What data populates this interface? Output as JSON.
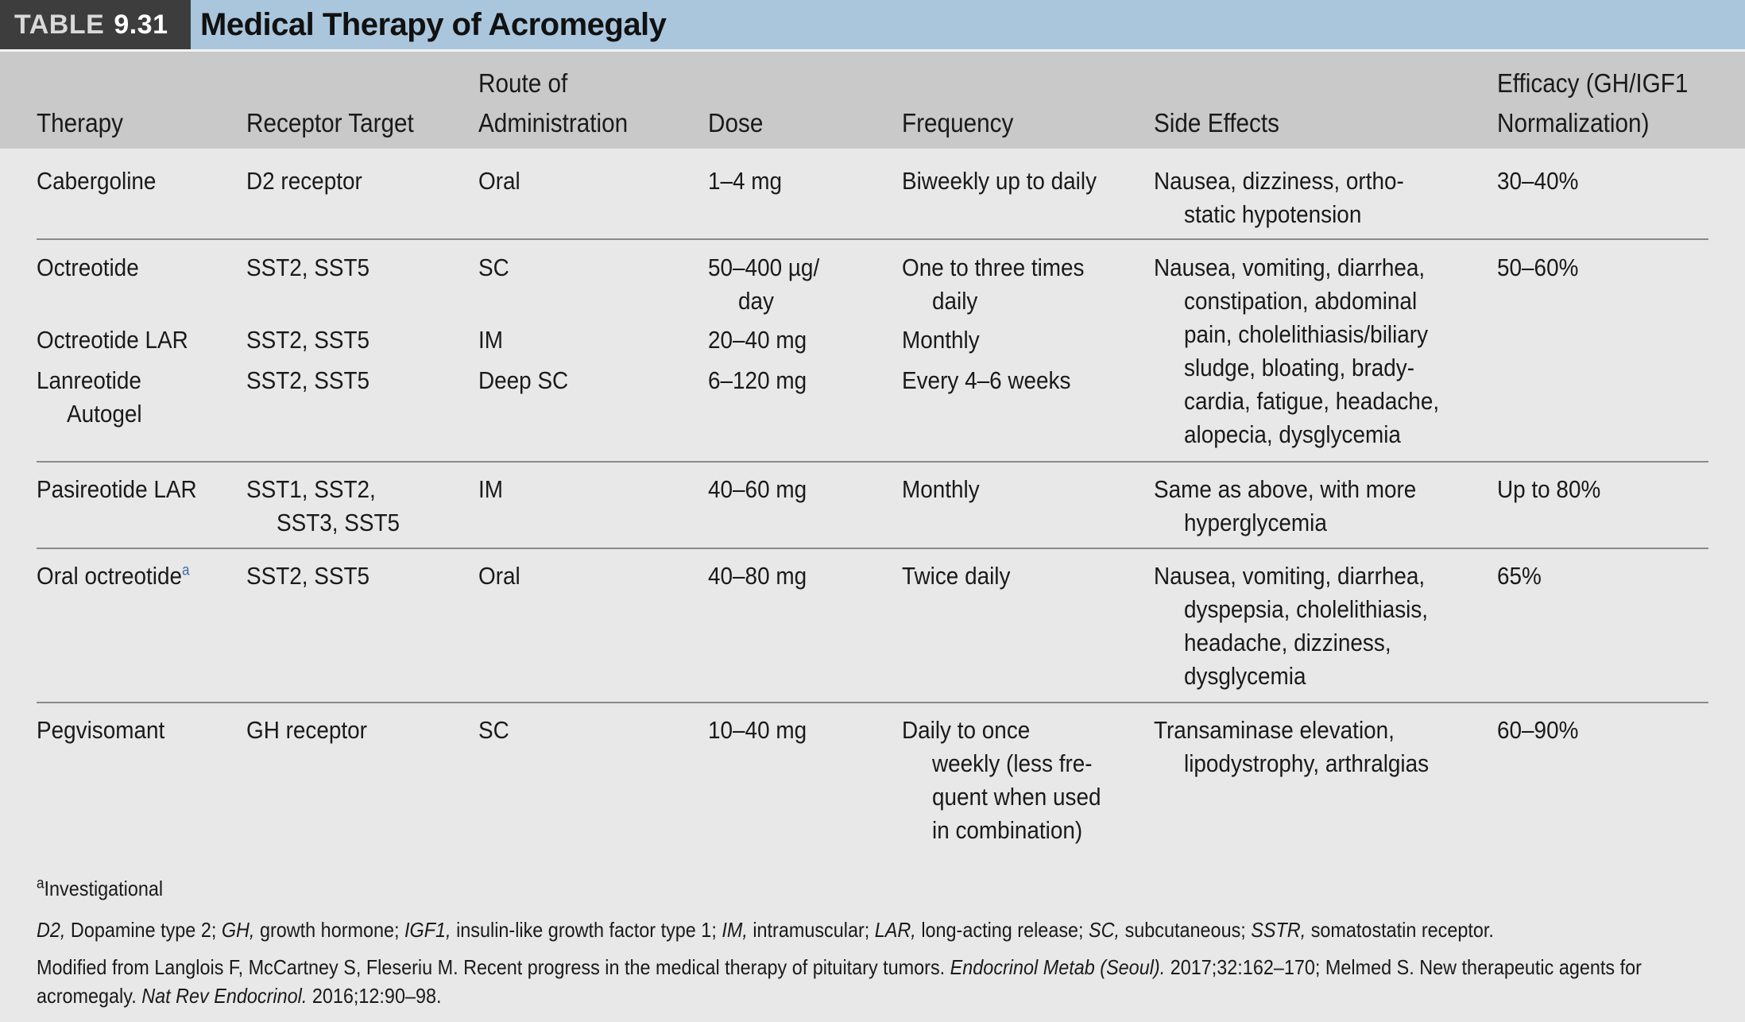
{
  "table_label": {
    "word": "TABLE",
    "number": "9.31"
  },
  "title": "Medical Therapy of Acromegaly",
  "headers": {
    "therapy": [
      "Therapy"
    ],
    "receptor": [
      "Receptor Target"
    ],
    "route": [
      "Route of",
      "Administration"
    ],
    "dose": [
      "Dose"
    ],
    "frequency": [
      "Frequency"
    ],
    "side_effects": [
      "Side Effects"
    ],
    "efficacy": [
      "Efficacy (GH/IGF1",
      "Normalization)"
    ]
  },
  "rows": {
    "cabergoline": {
      "therapy": [
        "Cabergoline"
      ],
      "receptor": [
        "D2 receptor"
      ],
      "route": [
        "Oral"
      ],
      "dose": [
        "1–4 mg"
      ],
      "frequency": [
        "Biweekly up to daily"
      ],
      "side_effects": [
        "Nausea, dizziness, ortho-",
        "static hypotension"
      ],
      "efficacy": [
        "30–40%"
      ]
    },
    "octreotide": {
      "therapy": [
        "Octreotide"
      ],
      "receptor": [
        "SST2, SST5"
      ],
      "route": [
        "SC"
      ],
      "dose": [
        "50–400 µg/",
        "day"
      ],
      "frequency": [
        "One to three times",
        "daily"
      ],
      "side_effects": [
        "Nausea, vomiting, diarrhea,",
        "constipation, abdominal",
        "pain, cholelithiasis/biliary",
        "sludge, bloating, brady-",
        "cardia, fatigue, headache,",
        "alopecia, dysglycemia"
      ],
      "efficacy": [
        "50–60%"
      ]
    },
    "octreotide_lar": {
      "therapy": [
        "Octreotide LAR"
      ],
      "receptor": [
        "SST2, SST5"
      ],
      "route": [
        "IM"
      ],
      "dose": [
        "20–40 mg"
      ],
      "frequency": [
        "Monthly"
      ]
    },
    "lanreotide": {
      "therapy": [
        "Lanreotide",
        "Autogel"
      ],
      "receptor": [
        "SST2, SST5"
      ],
      "route": [
        "Deep SC"
      ],
      "dose": [
        "6–120 mg"
      ],
      "frequency": [
        "Every 4–6 weeks"
      ]
    },
    "pasireotide": {
      "therapy": [
        "Pasireotide LAR"
      ],
      "receptor": [
        "SST1, SST2,",
        "SST3, SST5"
      ],
      "route": [
        "IM"
      ],
      "dose": [
        "40–60 mg"
      ],
      "frequency": [
        "Monthly"
      ],
      "side_effects": [
        "Same as above, with more",
        "hyperglycemia"
      ],
      "efficacy": [
        "Up to 80%"
      ]
    },
    "oral_octreotide": {
      "therapy": "Oral octreotide",
      "therapy_sup": "a",
      "receptor": [
        "SST2, SST5"
      ],
      "route": [
        "Oral"
      ],
      "dose": [
        "40–80 mg"
      ],
      "frequency": [
        "Twice daily"
      ],
      "side_effects": [
        "Nausea, vomiting, diarrhea,",
        "dyspepsia, cholelithiasis,",
        "headache, dizziness,",
        "dysglycemia"
      ],
      "efficacy": [
        "65%"
      ]
    },
    "pegvisomant": {
      "therapy": [
        "Pegvisomant"
      ],
      "receptor": [
        "GH receptor"
      ],
      "route": [
        "SC"
      ],
      "dose": [
        "10–40 mg"
      ],
      "frequency": [
        "Daily to once",
        "weekly (less fre-",
        "quent when used",
        "in combination)"
      ],
      "side_effects": [
        "Transaminase elevation,",
        "lipodystrophy, arthralgias"
      ],
      "efficacy": [
        "60–90%"
      ]
    }
  },
  "footnote": {
    "mark": "a",
    "text": "Investigational"
  },
  "abbreviations": [
    {
      "abbr": "D2,",
      "text": " Dopamine type 2; "
    },
    {
      "abbr": "GH,",
      "text": " growth hormone; "
    },
    {
      "abbr": "IGF1,",
      "text": " insulin-like growth factor type 1; "
    },
    {
      "abbr": "IM,",
      "text": " intramuscular; "
    },
    {
      "abbr": "LAR,",
      "text": " long-acting release; "
    },
    {
      "abbr": "SC,",
      "text": " subcutaneous; "
    },
    {
      "abbr": "SSTR,",
      "text": " somatostatin receptor."
    }
  ],
  "source": {
    "line1_a": "Modified from Langlois F, McCartney S, Fleseriu M. Recent progress in the medical therapy of pituitary tumors. ",
    "line1_journal": "Endocrinol Metab (Seoul).",
    "line1_b": " 2017;32:162–170; Melmed S. New therapeutic agents for",
    "line2_a": "acromegaly. ",
    "line2_journal": "Nat Rev Endocrinol.",
    "line2_b": " 2016;12:90–98."
  }
}
